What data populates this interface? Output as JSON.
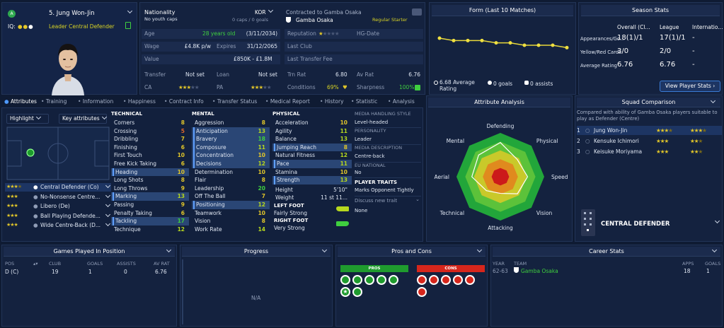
{
  "player": {
    "number_name": "5. Jung Won-Jin",
    "iq_label": "IQ:",
    "role": "Leader Central Defender"
  },
  "nationality": {
    "label": "Nationality",
    "code": "KOR",
    "caps_label": "No youth caps",
    "caps": "0 caps / 0 goals"
  },
  "club": {
    "contracted": "Contracted to Gamba Osaka",
    "status": "Regular Starter",
    "name": "Gamba Osaka"
  },
  "info": {
    "age_label": "Age",
    "age": "28 years old",
    "dob": "(3/11/2034)",
    "wage_label": "Wage",
    "wage": "£4.8K p/w",
    "expires_label": "Expires",
    "expires": "31/12/2065",
    "value_label": "Value",
    "value": "£850K - £1.8M",
    "transfer_label": "Transfer",
    "transfer": "Not set",
    "loan_label": "Loan",
    "loan": "Not set",
    "ca_label": "CA",
    "pa_label": "PA",
    "reputation_label": "Reputation",
    "hg_label": "HG-Date",
    "last_club_label": "Last Club",
    "last_fee_label": "Last Transfer Fee",
    "trn_rat_label": "Trn Rat",
    "trn_rat": "6.80",
    "av_rat_label": "Av Rat",
    "av_rat": "6.76",
    "conditions_label": "Conditions",
    "conditions": "69%",
    "sharpness_label": "Sharpness",
    "sharpness": "100%"
  },
  "form": {
    "title": "Form (Last 10 Matches)",
    "avg": "6.68 Average Rating",
    "goals": "0 goals",
    "assists": "0 assists",
    "values": [
      6.9,
      6.8,
      6.8,
      6.8,
      6.7,
      6.7,
      6.6,
      6.6,
      6.6,
      6.5
    ]
  },
  "season": {
    "title": "Season Stats",
    "cols": [
      "Overall (Cl...",
      "League",
      "Internatio..."
    ],
    "rows": [
      {
        "label": "Appearances/Go...",
        "vals": [
          "18(1)/1",
          "17(1)/1",
          "-"
        ]
      },
      {
        "label": "Yellow/Red Cards",
        "vals": [
          "3/0",
          "2/0",
          "-"
        ]
      },
      {
        "label": "Average Rating",
        "vals": [
          "6.76",
          "6.76",
          "-"
        ]
      }
    ],
    "button": "View Player Stats"
  },
  "tabs": [
    "Attributes",
    "Training",
    "Information",
    "Happiness",
    "Contract Info",
    "Transfer Status",
    "Medical Report",
    "History",
    "Statistic",
    "Analysis"
  ],
  "controls": {
    "highlight": "Highlight",
    "key_attributes": "Key attributes"
  },
  "positions": [
    {
      "label": "Central Defender (Co)",
      "stars": 3.5
    },
    {
      "label": "No-Nonsense Centre...",
      "stars": 3
    },
    {
      "label": "Libero (De)",
      "stars": 3
    },
    {
      "label": "Ball Playing Defende...",
      "stars": 3
    },
    {
      "label": "Wide Centre-Back (D...",
      "stars": 3
    }
  ],
  "technical": {
    "title": "TECHNICAL",
    "items": [
      [
        "Corners",
        "8"
      ],
      [
        "Crossing",
        "5"
      ],
      [
        "Dribbling",
        "7"
      ],
      [
        "Finishing",
        "6"
      ],
      [
        "First Touch",
        "10"
      ],
      [
        "Free Kick Taking",
        "6"
      ],
      [
        "Heading",
        "10"
      ],
      [
        "Long Shots",
        "8"
      ],
      [
        "Long Throws",
        "9"
      ],
      [
        "Marking",
        "13"
      ],
      [
        "Passing",
        "9"
      ],
      [
        "Penalty Taking",
        "6"
      ],
      [
        "Tackling",
        "17"
      ],
      [
        "Technique",
        "12"
      ]
    ]
  },
  "mental": {
    "title": "MENTAL",
    "items": [
      [
        "Aggression",
        "8"
      ],
      [
        "Anticipation",
        "13"
      ],
      [
        "Bravery",
        "18"
      ],
      [
        "Composure",
        "11"
      ],
      [
        "Concentration",
        "10"
      ],
      [
        "Decisions",
        "12"
      ],
      [
        "Determination",
        "10"
      ],
      [
        "Flair",
        "8"
      ],
      [
        "Leadership",
        "20"
      ],
      [
        "Off The Ball",
        "7"
      ],
      [
        "Positioning",
        "12"
      ],
      [
        "Teamwork",
        "10"
      ],
      [
        "Vision",
        "8"
      ],
      [
        "Work Rate",
        "14"
      ]
    ]
  },
  "physical": {
    "title": "PHYSICAL",
    "items": [
      [
        "Acceleration",
        "10"
      ],
      [
        "Agility",
        "11"
      ],
      [
        "Balance",
        "13"
      ],
      [
        "Jumping Reach",
        "8"
      ],
      [
        "Natural Fitness",
        "12"
      ],
      [
        "Pace",
        "11"
      ],
      [
        "Stamina",
        "10"
      ],
      [
        "Strength",
        "13"
      ]
    ],
    "height_label": "Height",
    "height": "5'10\"",
    "weight_label": "Weight",
    "weight": "11 st 11...",
    "left_foot_label": "LEFT FOOT",
    "left_foot": "Fairly Strong",
    "right_foot_label": "RIGHT FOOT",
    "right_foot": "Very Strong"
  },
  "media": {
    "style_title": "MEDIA HANDLING STYLE",
    "style": "Level-headed",
    "personality_title": "PERSONALITY",
    "personality": "Leader",
    "desc_title": "MEDIA DESCRIPTION",
    "desc": "Centre-back",
    "eu_title": "EU NATIONAL",
    "eu": "No",
    "traits_title": "PLAYER TRAITS",
    "trait": "Marks Opponent Tightly",
    "discover": "Discuss new trait",
    "none": "None"
  },
  "analysis": {
    "title": "Attribute Analysis",
    "labels": [
      "Defending",
      "Physical",
      "Speed",
      "Vision",
      "Attacking",
      "Technical",
      "Aerial",
      "Mental"
    ],
    "player": [
      0.78,
      0.55,
      0.62,
      0.55,
      0.38,
      0.45,
      0.65,
      0.7
    ]
  },
  "squad": {
    "title": "Squad Comparison",
    "desc": "Compared with ability of Gamba Osaka players suitable to play as Defender (Centre)",
    "rows": [
      {
        "rank": "1",
        "name": "Jung Won-Jin",
        "s1": 3.5,
        "s2": 3.5
      },
      {
        "rank": "2",
        "name": "Kensuke Ichimori",
        "s1": 3,
        "s2": 2.5
      },
      {
        "rank": "3",
        "name": "Keisuke Moriyama",
        "s1": 3,
        "s2": 2.5
      }
    ],
    "position": "CENTRAL DEFENDER"
  },
  "games": {
    "title": "Games Played In Position",
    "cols": [
      "POS",
      "CLUB",
      "GOALS",
      "ASSISTS",
      "AV RAT"
    ],
    "row": [
      "D (C)",
      "19",
      "1",
      "0",
      "6.76"
    ]
  },
  "progress": {
    "title": "Progress",
    "na": "N/A"
  },
  "proscons": {
    "title": "Pros and Cons",
    "pros": "PROS",
    "cons": "CONS"
  },
  "career": {
    "title": "Career Stats",
    "cols": [
      "YEAR",
      "TEAM",
      "APPS",
      "GOALS"
    ],
    "row": [
      "62-63",
      "Gamba Osaka",
      "18",
      "1"
    ]
  }
}
